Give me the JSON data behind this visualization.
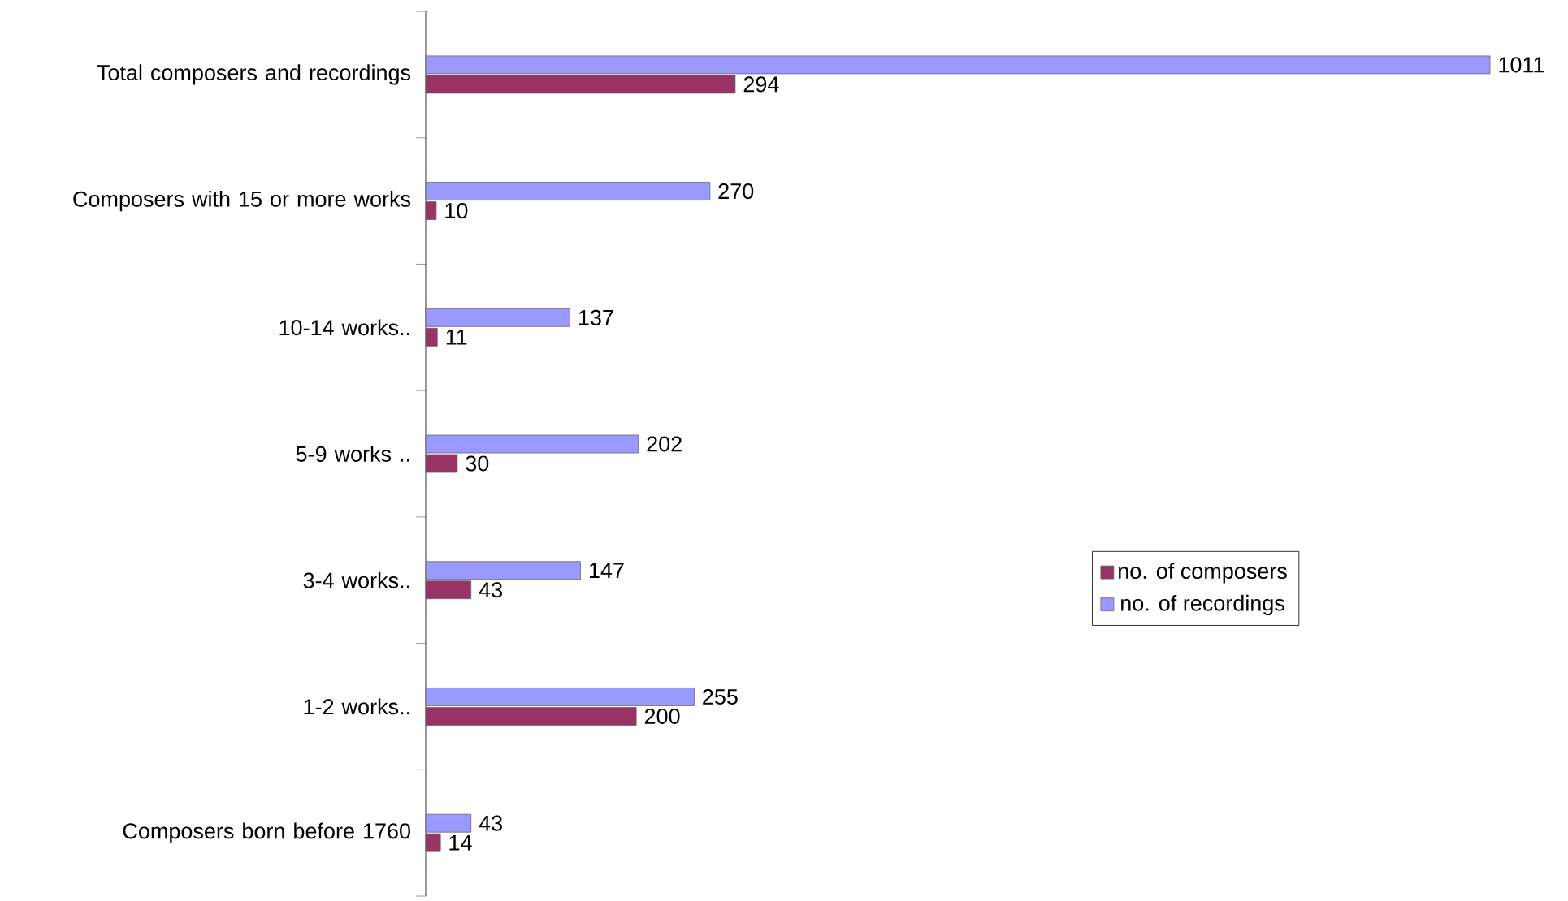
{
  "chart_data": {
    "type": "bar",
    "orientation": "horizontal",
    "data_labels": true,
    "legend": "right",
    "categories": [
      "Total composers and recordings",
      "Composers with 15 or more works",
      "10-14 works..",
      "5-9 works ..",
      "3-4 works..",
      "1-2 works..",
      "Composers born before 1760"
    ],
    "series": [
      {
        "name": "no. of composers",
        "color": "#993366",
        "values": [
          294,
          10,
          11,
          30,
          43,
          200,
          14
        ]
      },
      {
        "name": "no. of recordings",
        "color": "#9999ff",
        "values": [
          1011,
          270,
          137,
          202,
          147,
          255,
          43
        ]
      }
    ]
  }
}
